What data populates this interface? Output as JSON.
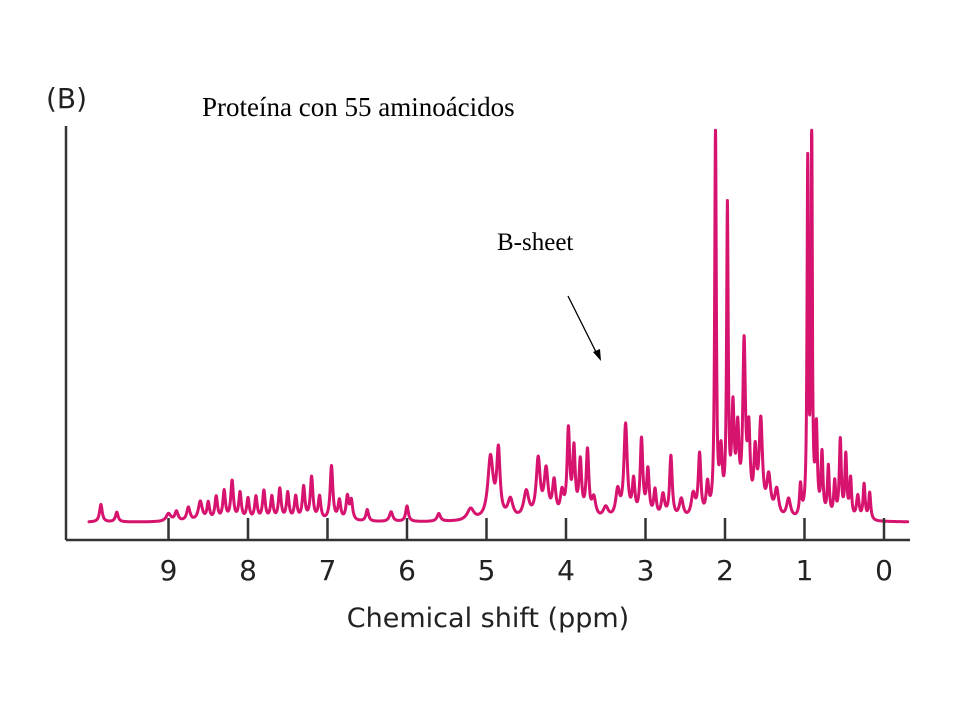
{
  "chart_data": {
    "type": "line",
    "panel_label": "(B)",
    "title": "Proteína con 55 aminoácidos",
    "xlabel": "Chemical shift (ppm)",
    "ylabel": "",
    "x_reversed": true,
    "xlim": [
      10.0,
      -0.3
    ],
    "ylim": [
      0,
      1
    ],
    "xticks": [
      9,
      8,
      7,
      6,
      5,
      4,
      3,
      2,
      1,
      0
    ],
    "grid": false,
    "line_color": "#d6136f",
    "annotations": [
      {
        "text": "B-sheet",
        "x": 3.5,
        "y": 0.42
      }
    ],
    "series": [
      {
        "baseline": 0.01,
        "peaks": [
          [
            9.85,
            0.045,
            0.02
          ],
          [
            9.65,
            0.025,
            0.02
          ],
          [
            9.0,
            0.02,
            0.035
          ],
          [
            8.9,
            0.025,
            0.025
          ],
          [
            8.75,
            0.035,
            0.025
          ],
          [
            8.6,
            0.05,
            0.03
          ],
          [
            8.5,
            0.045,
            0.02
          ],
          [
            8.4,
            0.06,
            0.02
          ],
          [
            8.3,
            0.075,
            0.02
          ],
          [
            8.2,
            0.1,
            0.02
          ],
          [
            8.1,
            0.07,
            0.02
          ],
          [
            8.0,
            0.055,
            0.02
          ],
          [
            7.9,
            0.06,
            0.02
          ],
          [
            7.8,
            0.075,
            0.02
          ],
          [
            7.7,
            0.06,
            0.02
          ],
          [
            7.6,
            0.08,
            0.02
          ],
          [
            7.5,
            0.07,
            0.02
          ],
          [
            7.4,
            0.06,
            0.02
          ],
          [
            7.3,
            0.085,
            0.02
          ],
          [
            7.2,
            0.11,
            0.02
          ],
          [
            7.1,
            0.06,
            0.02
          ],
          [
            6.95,
            0.14,
            0.02
          ],
          [
            6.85,
            0.05,
            0.02
          ],
          [
            6.75,
            0.06,
            0.02
          ],
          [
            6.7,
            0.05,
            0.02
          ],
          [
            6.5,
            0.03,
            0.02
          ],
          [
            6.2,
            0.025,
            0.025
          ],
          [
            6.0,
            0.04,
            0.02
          ],
          [
            5.6,
            0.02,
            0.025
          ],
          [
            5.2,
            0.03,
            0.05
          ],
          [
            4.95,
            0.16,
            0.04
          ],
          [
            4.85,
            0.17,
            0.025
          ],
          [
            4.7,
            0.05,
            0.04
          ],
          [
            4.5,
            0.07,
            0.04
          ],
          [
            4.35,
            0.15,
            0.03
          ],
          [
            4.25,
            0.12,
            0.03
          ],
          [
            4.15,
            0.09,
            0.025
          ],
          [
            4.05,
            0.06,
            0.025
          ],
          [
            3.97,
            0.22,
            0.02
          ],
          [
            3.9,
            0.17,
            0.02
          ],
          [
            3.82,
            0.14,
            0.02
          ],
          [
            3.73,
            0.17,
            0.02
          ],
          [
            3.65,
            0.05,
            0.03
          ],
          [
            3.5,
            0.03,
            0.04
          ],
          [
            3.35,
            0.07,
            0.03
          ],
          [
            3.25,
            0.24,
            0.025
          ],
          [
            3.15,
            0.09,
            0.02
          ],
          [
            3.05,
            0.2,
            0.02
          ],
          [
            2.97,
            0.12,
            0.02
          ],
          [
            2.88,
            0.07,
            0.02
          ],
          [
            2.78,
            0.06,
            0.025
          ],
          [
            2.68,
            0.16,
            0.02
          ],
          [
            2.55,
            0.05,
            0.03
          ],
          [
            2.4,
            0.06,
            0.03
          ],
          [
            2.32,
            0.16,
            0.02
          ],
          [
            2.22,
            0.08,
            0.02
          ],
          [
            2.12,
            1.0,
            0.012
          ],
          [
            2.05,
            0.15,
            0.02
          ],
          [
            1.97,
            0.78,
            0.012
          ],
          [
            1.9,
            0.26,
            0.02
          ],
          [
            1.84,
            0.2,
            0.02
          ],
          [
            1.76,
            0.43,
            0.02
          ],
          [
            1.7,
            0.2,
            0.02
          ],
          [
            1.62,
            0.15,
            0.02
          ],
          [
            1.55,
            0.24,
            0.025
          ],
          [
            1.45,
            0.1,
            0.03
          ],
          [
            1.35,
            0.07,
            0.03
          ],
          [
            1.2,
            0.05,
            0.03
          ],
          [
            1.05,
            0.08,
            0.015
          ],
          [
            0.96,
            0.9,
            0.01
          ],
          [
            0.91,
            1.0,
            0.01
          ],
          [
            0.85,
            0.22,
            0.015
          ],
          [
            0.78,
            0.16,
            0.015
          ],
          [
            0.7,
            0.13,
            0.015
          ],
          [
            0.62,
            0.09,
            0.015
          ],
          [
            0.55,
            0.2,
            0.015
          ],
          [
            0.48,
            0.16,
            0.015
          ],
          [
            0.42,
            0.1,
            0.015
          ],
          [
            0.33,
            0.06,
            0.02
          ],
          [
            0.25,
            0.09,
            0.015
          ],
          [
            0.18,
            0.07,
            0.015
          ]
        ]
      }
    ]
  }
}
